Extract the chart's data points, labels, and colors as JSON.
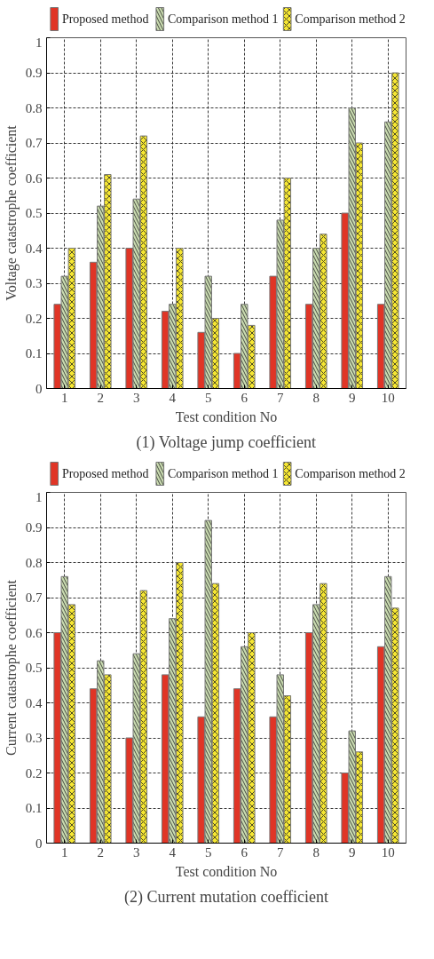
{
  "chart_data": [
    {
      "type": "bar",
      "title": "(1) Voltage jump coefficient",
      "xlabel": "Test condition No",
      "ylabel": "Voltage catastrophe coefficient",
      "categories": [
        "1",
        "2",
        "3",
        "4",
        "5",
        "6",
        "7",
        "8",
        "9",
        "10"
      ],
      "series": [
        {
          "name": "Proposed method",
          "color": "#e03526",
          "values": [
            0.24,
            0.36,
            0.4,
            0.22,
            0.16,
            0.1,
            0.32,
            0.24,
            0.5,
            0.24
          ]
        },
        {
          "name": "Comparison method 1",
          "color": "#c9dbb0",
          "values": [
            0.32,
            0.52,
            0.54,
            0.24,
            0.32,
            0.24,
            0.48,
            0.4,
            0.8,
            0.76
          ]
        },
        {
          "name": "Comparison method 2",
          "color": "#f5e632",
          "values": [
            0.4,
            0.61,
            0.72,
            0.4,
            0.2,
            0.18,
            0.6,
            0.44,
            0.7,
            0.9
          ]
        }
      ],
      "ylim": [
        0,
        1
      ],
      "yticks": [
        0,
        0.1,
        0.2,
        0.3,
        0.4,
        0.5,
        0.6,
        0.7,
        0.8,
        0.9,
        1
      ],
      "grid": true,
      "legend": "top"
    },
    {
      "type": "bar",
      "title": "(2) Current mutation coefficient",
      "xlabel": "Test condition No",
      "ylabel": "Current catastrophe coefficient",
      "categories": [
        "1",
        "2",
        "3",
        "4",
        "5",
        "6",
        "7",
        "8",
        "9",
        "10"
      ],
      "series": [
        {
          "name": "Proposed method",
          "color": "#e03526",
          "values": [
            0.6,
            0.44,
            0.3,
            0.48,
            0.36,
            0.44,
            0.36,
            0.6,
            0.2,
            0.56
          ]
        },
        {
          "name": "Comparison method 1",
          "color": "#c9dbb0",
          "values": [
            0.76,
            0.52,
            0.54,
            0.64,
            0.92,
            0.56,
            0.48,
            0.68,
            0.32,
            0.76
          ]
        },
        {
          "name": "Comparison method 2",
          "color": "#f5e632",
          "values": [
            0.68,
            0.48,
            0.72,
            0.8,
            0.74,
            0.6,
            0.42,
            0.74,
            0.26,
            0.67
          ]
        }
      ],
      "ylim": [
        0,
        1
      ],
      "yticks": [
        0,
        0.1,
        0.2,
        0.3,
        0.4,
        0.5,
        0.6,
        0.7,
        0.8,
        0.9,
        1
      ],
      "grid": true,
      "legend": "top"
    }
  ]
}
